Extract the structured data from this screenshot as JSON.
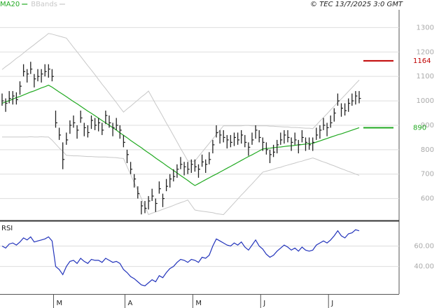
{
  "chart_data": [
    {
      "type": "ohlc",
      "credit": "© TEC 13/7/2025 3:0 GMT",
      "categories": [
        null,
        null,
        null,
        null,
        null,
        null,
        null,
        null,
        null,
        null,
        null,
        null,
        null,
        null,
        null,
        "M",
        null,
        null,
        null,
        null,
        null,
        null,
        null,
        null,
        null,
        null,
        null,
        null,
        null,
        null,
        null,
        null,
        null,
        null,
        null,
        "A",
        null,
        null,
        null,
        null,
        null,
        null,
        null,
        null,
        null,
        null,
        null,
        null,
        null,
        null,
        null,
        null,
        null,
        null,
        "M",
        null,
        null,
        null,
        null,
        null,
        null,
        null,
        null,
        null,
        null,
        null,
        null,
        null,
        null,
        null,
        null,
        null,
        null,
        "J",
        null,
        null,
        null,
        null,
        null,
        null,
        null,
        null,
        null,
        null,
        null,
        null,
        null,
        null,
        null,
        null,
        null,
        null,
        "J",
        null,
        null,
        null,
        null,
        null,
        null,
        null,
        null
      ],
      "bar_color": "#222222",
      "high": [
        1030,
        1010,
        1040,
        1040,
        1035,
        1080,
        1150,
        1130,
        1160,
        1110,
        1130,
        1130,
        1150,
        1150,
        1130,
        960,
        890,
        830,
        870,
        920,
        940,
        900,
        960,
        910,
        900,
        940,
        930,
        930,
        910,
        960,
        940,
        910,
        930,
        900,
        860,
        800,
        750,
        700,
        650,
        590,
        590,
        610,
        640,
        600,
        670,
        620,
        680,
        700,
        720,
        740,
        770,
        750,
        750,
        760,
        760,
        740,
        780,
        760,
        790,
        840,
        900,
        880,
        880,
        860,
        860,
        870,
        870,
        880,
        860,
        830,
        870,
        900,
        880,
        850,
        830,
        800,
        820,
        840,
        870,
        880,
        880,
        850,
        870,
        840,
        880,
        850,
        850,
        850,
        890,
        900,
        930,
        910,
        940,
        970,
        1030,
        990,
        990,
        1010,
        1030,
        1040,
        1040
      ],
      "low": [
        980,
        955,
        990,
        985,
        985,
        1025,
        1100,
        1075,
        1110,
        1055,
        1080,
        1075,
        1100,
        1095,
        1080,
        890,
        840,
        720,
        820,
        865,
        890,
        845,
        910,
        855,
        850,
        885,
        880,
        875,
        860,
        905,
        890,
        855,
        880,
        845,
        810,
        745,
        700,
        645,
        600,
        535,
        540,
        555,
        590,
        545,
        620,
        565,
        630,
        645,
        670,
        685,
        720,
        695,
        700,
        705,
        710,
        685,
        730,
        705,
        740,
        785,
        850,
        825,
        830,
        805,
        810,
        815,
        820,
        825,
        810,
        775,
        820,
        845,
        830,
        795,
        780,
        745,
        770,
        785,
        820,
        825,
        830,
        795,
        820,
        785,
        830,
        795,
        800,
        795,
        840,
        845,
        880,
        855,
        890,
        915,
        980,
        935,
        940,
        955,
        980,
        985,
        990
      ],
      "close": [
        1000,
        990,
        1010,
        1020,
        1005,
        1060,
        1120,
        1110,
        1130,
        1090,
        1100,
        1110,
        1120,
        1130,
        1100,
        910,
        860,
        760,
        840,
        900,
        910,
        880,
        930,
        890,
        870,
        920,
        900,
        910,
        880,
        940,
        910,
        890,
        900,
        880,
        830,
        780,
        720,
        680,
        620,
        570,
        560,
        590,
        610,
        580,
        640,
        600,
        650,
        680,
        690,
        720,
        740,
        730,
        720,
        740,
        730,
        720,
        750,
        740,
        760,
        820,
        870,
        860,
        850,
        840,
        830,
        850,
        840,
        860,
        830,
        810,
        840,
        880,
        850,
        830,
        800,
        780,
        790,
        820,
        840,
        860,
        850,
        830,
        840,
        820,
        850,
        830,
        820,
        830,
        860,
        880,
        900,
        890,
        910,
        950,
        1000,
        970,
        960,
        990,
        1000,
        1020,
        1010
      ],
      "series": [
        {
          "name": "MA20",
          "color": "#22aa22",
          "values": [
            990,
            996,
            1001,
            1007,
            1013,
            1018,
            1024,
            1030,
            1036,
            1041,
            1047,
            1053,
            1058,
            1064,
            1056,
            1046,
            1036,
            1027,
            1017,
            1007,
            997,
            988,
            978,
            968,
            958,
            949,
            939,
            929,
            919,
            910,
            900,
            890,
            880,
            869,
            859,
            849,
            838,
            828,
            818,
            808,
            797,
            787,
            777,
            766,
            756,
            746,
            735,
            725,
            715,
            705,
            694,
            684,
            674,
            663,
            653,
            661,
            669,
            677,
            685,
            693,
            700,
            708,
            716,
            724,
            732,
            740,
            748,
            756,
            764,
            772,
            779,
            787,
            795,
            803,
            805,
            806,
            808,
            810,
            811,
            813,
            815,
            816,
            818,
            820,
            821,
            823,
            825,
            826,
            831,
            836,
            841,
            846,
            851,
            856,
            861,
            865,
            870,
            875,
            880,
            885,
            890
          ]
        },
        {
          "name": "BBands",
          "color": "#c8c8c8",
          "upper": [
            1128,
            1140,
            1150,
            1162,
            1174,
            1184,
            1196,
            1208,
            1219,
            1230,
            1242,
            1253,
            1264,
            1276,
            1273,
            1269,
            1265,
            1261,
            1257,
            1238,
            1219,
            1201,
            1182,
            1163,
            1144,
            1126,
            1107,
            1088,
            1068,
            1050,
            1031,
            1012,
            993,
            973,
            954,
            967,
            978,
            991,
            1003,
            1016,
            1027,
            1040,
            1014,
            987,
            962,
            936,
            909,
            884,
            858,
            832,
            805,
            780,
            754,
            753,
            753,
            772,
            790,
            808,
            826,
            844,
            862,
            880,
            898,
            898,
            898,
            898,
            898,
            898,
            899,
            899,
            898,
            898,
            898,
            898,
            898,
            896,
            896,
            895,
            894,
            893,
            893,
            891,
            891,
            890,
            889,
            888,
            888,
            886,
            901,
            917,
            932,
            947,
            963,
            978,
            994,
            1008,
            1023,
            1039,
            1054,
            1070,
            1085
          ],
          "lower": [
            852,
            852,
            852,
            852,
            852,
            852,
            852,
            852,
            853,
            852,
            852,
            853,
            852,
            852,
            839,
            823,
            807,
            793,
            777,
            776,
            775,
            775,
            774,
            773,
            772,
            772,
            771,
            770,
            770,
            770,
            769,
            768,
            767,
            765,
            764,
            731,
            698,
            665,
            633,
            600,
            567,
            534,
            540,
            545,
            550,
            556,
            561,
            566,
            572,
            578,
            583,
            588,
            594,
            573,
            553,
            550,
            548,
            546,
            544,
            542,
            538,
            536,
            534,
            550,
            566,
            582,
            598,
            614,
            629,
            645,
            660,
            676,
            692,
            708,
            712,
            716,
            720,
            725,
            728,
            733,
            737,
            741,
            745,
            750,
            753,
            758,
            762,
            766,
            761,
            755,
            750,
            745,
            739,
            734,
            728,
            722,
            717,
            711,
            706,
            700,
            695
          ]
        }
      ],
      "levels": [
        {
          "value": 1164,
          "color": "#c00000"
        },
        {
          "value": 890,
          "color": "#22aa22"
        }
      ],
      "ylim": [
        510,
        1370
      ],
      "yticks": [
        600,
        700,
        800,
        900,
        1000,
        1100,
        1200,
        1300
      ],
      "grid": true
    },
    {
      "type": "line",
      "title": "RSI",
      "color": "#2233bb",
      "values": [
        60,
        58,
        62,
        63,
        61,
        64,
        68,
        66,
        69,
        64,
        65,
        66,
        67,
        69,
        65,
        40,
        37,
        32,
        40,
        45,
        46,
        43,
        48,
        45,
        43,
        47,
        46,
        46,
        44,
        48,
        46,
        44,
        45,
        43,
        37,
        34,
        30,
        28,
        25,
        22,
        21,
        24,
        27,
        25,
        31,
        29,
        34,
        38,
        40,
        44,
        47,
        46,
        44,
        47,
        46,
        44,
        49,
        48,
        51,
        60,
        67,
        65,
        63,
        61,
        60,
        63,
        61,
        64,
        59,
        56,
        61,
        66,
        60,
        57,
        52,
        49,
        51,
        55,
        58,
        61,
        59,
        56,
        58,
        55,
        59,
        56,
        55,
        56,
        61,
        63,
        65,
        63,
        66,
        70,
        75,
        70,
        68,
        72,
        73,
        76,
        75
      ],
      "ylim": [
        13,
        83
      ],
      "yticks": [
        {
          "value": 60,
          "label": "60.00"
        },
        {
          "value": 40,
          "label": "40.00"
        }
      ],
      "grid": true
    }
  ]
}
